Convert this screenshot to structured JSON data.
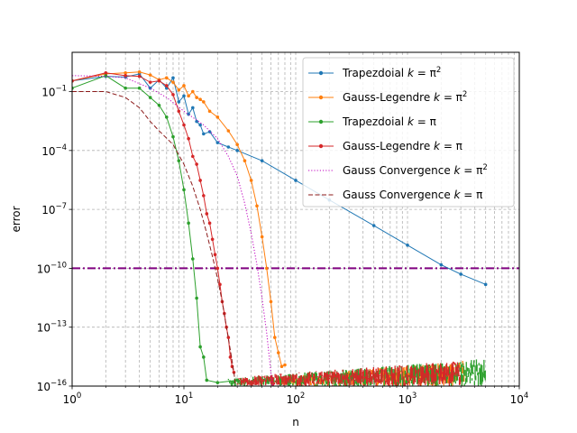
{
  "chart_data": {
    "type": "line",
    "xlabel": "n",
    "ylabel": "error",
    "x_scale": "log",
    "y_scale": "log",
    "xlim": [
      1,
      10000
    ],
    "ylim": [
      1e-16,
      10
    ],
    "grid": "on (major and minor, dashed)",
    "legend_position": "upper-right",
    "x_ticks": [
      {
        "value": 1,
        "base": "10",
        "exp": "0"
      },
      {
        "value": 10,
        "base": "10",
        "exp": "1"
      },
      {
        "value": 100,
        "base": "10",
        "exp": "2"
      },
      {
        "value": 1000,
        "base": "10",
        "exp": "3"
      },
      {
        "value": 10000,
        "base": "10",
        "exp": "4"
      }
    ],
    "y_ticks": [
      {
        "value": 1e-16,
        "base": "10",
        "exp": "−16"
      },
      {
        "value": 1e-13,
        "base": "10",
        "exp": "−13"
      },
      {
        "value": 1e-10,
        "base": "10",
        "exp": "−10"
      },
      {
        "value": 1e-07,
        "base": "10",
        "exp": "−7"
      },
      {
        "value": 0.0001,
        "base": "10",
        "exp": "−4"
      },
      {
        "value": 0.1,
        "base": "10",
        "exp": "−1"
      }
    ],
    "reference_line": {
      "y": 1e-10,
      "color": "#800080",
      "style": "dash-dot"
    },
    "series": [
      {
        "key": "trap_pi2",
        "name": "Trapezdoial k = π²",
        "legend": {
          "text": "Trapezdoial ",
          "math": "k",
          "eq": " = π",
          "sup": "2"
        },
        "color": "#1f77b4",
        "style": "line-dot",
        "points": [
          [
            1,
            0.35
          ],
          [
            2,
            0.6
          ],
          [
            3,
            0.55
          ],
          [
            4,
            0.8
          ],
          [
            5,
            0.15
          ],
          [
            6,
            0.4
          ],
          [
            7,
            0.15
          ],
          [
            8,
            0.5
          ],
          [
            9,
            0.03
          ],
          [
            10,
            0.06
          ],
          [
            11,
            0.007
          ],
          [
            12,
            0.015
          ],
          [
            13,
            0.003
          ],
          [
            14,
            0.002
          ],
          [
            15,
            0.0007
          ],
          [
            17,
            0.0009
          ],
          [
            20,
            0.00025
          ],
          [
            25,
            0.00015
          ],
          [
            30,
            0.0001
          ],
          [
            50,
            3e-05
          ],
          [
            100,
            3e-06
          ],
          [
            200,
            3e-07
          ],
          [
            500,
            1.5e-08
          ],
          [
            1000,
            1.5e-09
          ],
          [
            2000,
            1.5e-10
          ],
          [
            3000,
            5e-11
          ],
          [
            5000,
            1.5e-11
          ]
        ]
      },
      {
        "key": "gl_pi2",
        "name": "Gauss-Legendre k = π²",
        "legend": {
          "text": "Gauss-Legendre ",
          "math": "k",
          "eq": " = π",
          "sup": "2"
        },
        "color": "#ff7f0e",
        "style": "line-dot",
        "points": [
          [
            1,
            0.35
          ],
          [
            2,
            0.8
          ],
          [
            3,
            0.9
          ],
          [
            4,
            1.0
          ],
          [
            5,
            0.7
          ],
          [
            6,
            0.4
          ],
          [
            7,
            0.5
          ],
          [
            8,
            0.3
          ],
          [
            9,
            0.12
          ],
          [
            10,
            0.2
          ],
          [
            11,
            0.06
          ],
          [
            12,
            0.1
          ],
          [
            13,
            0.05
          ],
          [
            14,
            0.04
          ],
          [
            15,
            0.03
          ],
          [
            17,
            0.01
          ],
          [
            20,
            0.005
          ],
          [
            25,
            0.001
          ],
          [
            30,
            0.0002
          ],
          [
            35,
            3e-05
          ],
          [
            40,
            3e-06
          ],
          [
            45,
            1.5e-07
          ],
          [
            50,
            4e-09
          ],
          [
            55,
            1e-10
          ],
          [
            60,
            2e-12
          ],
          [
            65,
            3e-14
          ],
          [
            70,
            5e-15
          ],
          [
            75,
            1e-15
          ],
          [
            80,
            1.2e-15
          ]
        ]
      },
      {
        "key": "trap_pi",
        "name": "Trapezdoial k = π",
        "legend": {
          "text": "Trapezdoial ",
          "math": "k",
          "eq": " = π",
          "sup": ""
        },
        "color": "#2ca02c",
        "style": "line-dot",
        "points": [
          [
            1,
            0.15
          ],
          [
            2,
            0.65
          ],
          [
            3,
            0.15
          ],
          [
            4,
            0.15
          ],
          [
            5,
            0.05
          ],
          [
            6,
            0.02
          ],
          [
            7,
            0.005
          ],
          [
            8,
            0.0005
          ],
          [
            9,
            3e-05
          ],
          [
            10,
            1e-06
          ],
          [
            11,
            2e-08
          ],
          [
            12,
            3e-10
          ],
          [
            13,
            3e-12
          ],
          [
            14,
            1e-14
          ],
          [
            15,
            3e-15
          ],
          [
            16,
            2e-16
          ],
          [
            20,
            1.5e-16
          ],
          [
            30,
            2e-16
          ]
        ]
      },
      {
        "key": "gl_pi",
        "name": "Gauss-Legendre k = π",
        "legend": {
          "text": "Gauss-Legendre ",
          "math": "k",
          "eq": " = π",
          "sup": ""
        },
        "color": "#d62728",
        "style": "line-dot",
        "points": [
          [
            1,
            0.35
          ],
          [
            2,
            0.9
          ],
          [
            3,
            0.65
          ],
          [
            4,
            0.6
          ],
          [
            5,
            0.3
          ],
          [
            6,
            0.35
          ],
          [
            7,
            0.2
          ],
          [
            8,
            0.07
          ],
          [
            9,
            0.01
          ],
          [
            10,
            0.002
          ],
          [
            11,
            0.0004
          ],
          [
            12,
            5e-05
          ],
          [
            13,
            2e-05
          ],
          [
            14,
            3e-06
          ],
          [
            15,
            5e-07
          ],
          [
            16,
            6e-08
          ],
          [
            17,
            2e-08
          ],
          [
            18,
            3e-09
          ],
          [
            19,
            5e-10
          ],
          [
            20,
            1e-10
          ],
          [
            21,
            1.5e-11
          ],
          [
            22,
            2e-12
          ],
          [
            23,
            5e-13
          ],
          [
            24,
            1e-13
          ],
          [
            25,
            3e-14
          ],
          [
            26,
            3e-15
          ],
          [
            27,
            1e-15
          ],
          [
            28,
            5e-16
          ]
        ]
      },
      {
        "key": "gauss_conv_pi2",
        "name": "Gauss Convergence k = π²",
        "legend": {
          "text": "Gauss Convergence ",
          "math": "k",
          "eq": " = π",
          "sup": "2"
        },
        "color": "#bf00bf",
        "style": "dotted",
        "points": [
          [
            1,
            0.65
          ],
          [
            2,
            0.6
          ],
          [
            3,
            0.5
          ],
          [
            5,
            0.15
          ],
          [
            7,
            0.05
          ],
          [
            10,
            0.01
          ],
          [
            15,
            0.002
          ],
          [
            20,
            0.0004
          ],
          [
            25,
            5e-05
          ],
          [
            30,
            5e-06
          ],
          [
            35,
            2e-07
          ],
          [
            40,
            6e-09
          ],
          [
            45,
            1.5e-10
          ],
          [
            50,
            3e-12
          ],
          [
            55,
            5e-14
          ],
          [
            60,
            5e-16
          ],
          [
            62,
            1e-16
          ]
        ]
      },
      {
        "key": "gauss_conv_pi",
        "name": "Gauss Convergence k = π",
        "legend": {
          "text": "Gauss Convergence ",
          "math": "k",
          "eq": " = π",
          "sup": ""
        },
        "color": "#8c1a1a",
        "style": "dashed",
        "points": [
          [
            1,
            0.1
          ],
          [
            2,
            0.1
          ],
          [
            3,
            0.05
          ],
          [
            4,
            0.015
          ],
          [
            5,
            0.003
          ],
          [
            6,
            0.001
          ],
          [
            8,
            0.0002
          ],
          [
            10,
            2e-05
          ],
          [
            12,
            1.5e-06
          ],
          [
            14,
            1e-07
          ],
          [
            16,
            6e-09
          ],
          [
            18,
            4e-10
          ],
          [
            20,
            3e-11
          ],
          [
            22,
            2e-12
          ],
          [
            24,
            1e-13
          ],
          [
            26,
            7e-15
          ],
          [
            28,
            5e-16
          ],
          [
            29,
            1e-16
          ]
        ]
      }
    ],
    "noise_bands": [
      {
        "color": "#ff7f0e",
        "x_from": 70,
        "x_to": 3200,
        "y_low_from": 1e-16,
        "y_low_to": 1e-16,
        "y_high_from": 3e-16,
        "y_high_to": 2e-15
      },
      {
        "color": "#2ca02c",
        "x_from": 25,
        "x_to": 5000,
        "y_low_from": 1e-16,
        "y_low_to": 1e-16,
        "y_high_from": 2.5e-16,
        "y_high_to": 2.5e-15
      },
      {
        "color": "#d62728",
        "x_from": 30,
        "x_to": 3000,
        "y_low_from": 1e-16,
        "y_low_to": 1e-16,
        "y_high_from": 3e-16,
        "y_high_to": 2e-15
      }
    ]
  }
}
